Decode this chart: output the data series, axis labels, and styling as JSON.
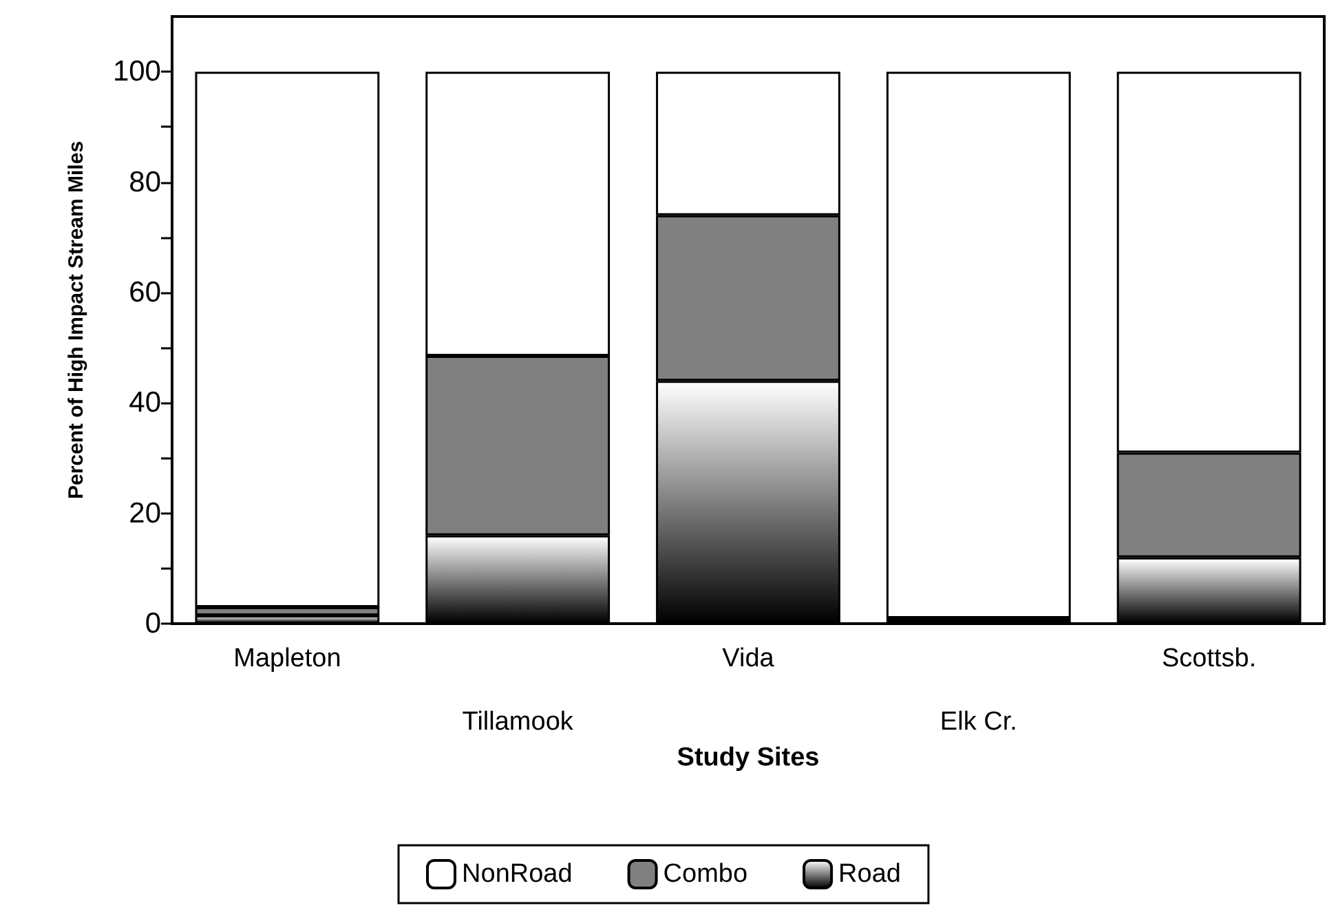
{
  "chart_data": {
    "type": "bar",
    "stacked": true,
    "xlabel": "Study Sites",
    "ylabel": "Percent of High Impact Stream Miles",
    "categories": [
      "Mapleton",
      "Tillamook",
      "Vida",
      "Elk Cr.",
      "Scottsb."
    ],
    "series": [
      {
        "name": "Road",
        "color": "#000000",
        "values": [
          1.5,
          16,
          44,
          0.5,
          12
        ]
      },
      {
        "name": "Combo",
        "color": "#808080",
        "values": [
          1.5,
          32.5,
          30,
          0.5,
          19
        ]
      },
      {
        "name": "NonRoad",
        "color": "#ffffff",
        "values": [
          97,
          51.5,
          26,
          99,
          69
        ]
      }
    ],
    "ylim": [
      0,
      110
    ],
    "yticks": [
      0,
      {
        "value": 10,
        "label": null
      },
      20,
      {
        "value": 30,
        "label": null
      },
      40,
      {
        "value": 50,
        "label": null
      },
      60,
      {
        "value": 70,
        "label": null
      },
      80,
      {
        "value": 90,
        "label": null
      },
      100
    ],
    "grid": false,
    "legend": "bottom"
  }
}
